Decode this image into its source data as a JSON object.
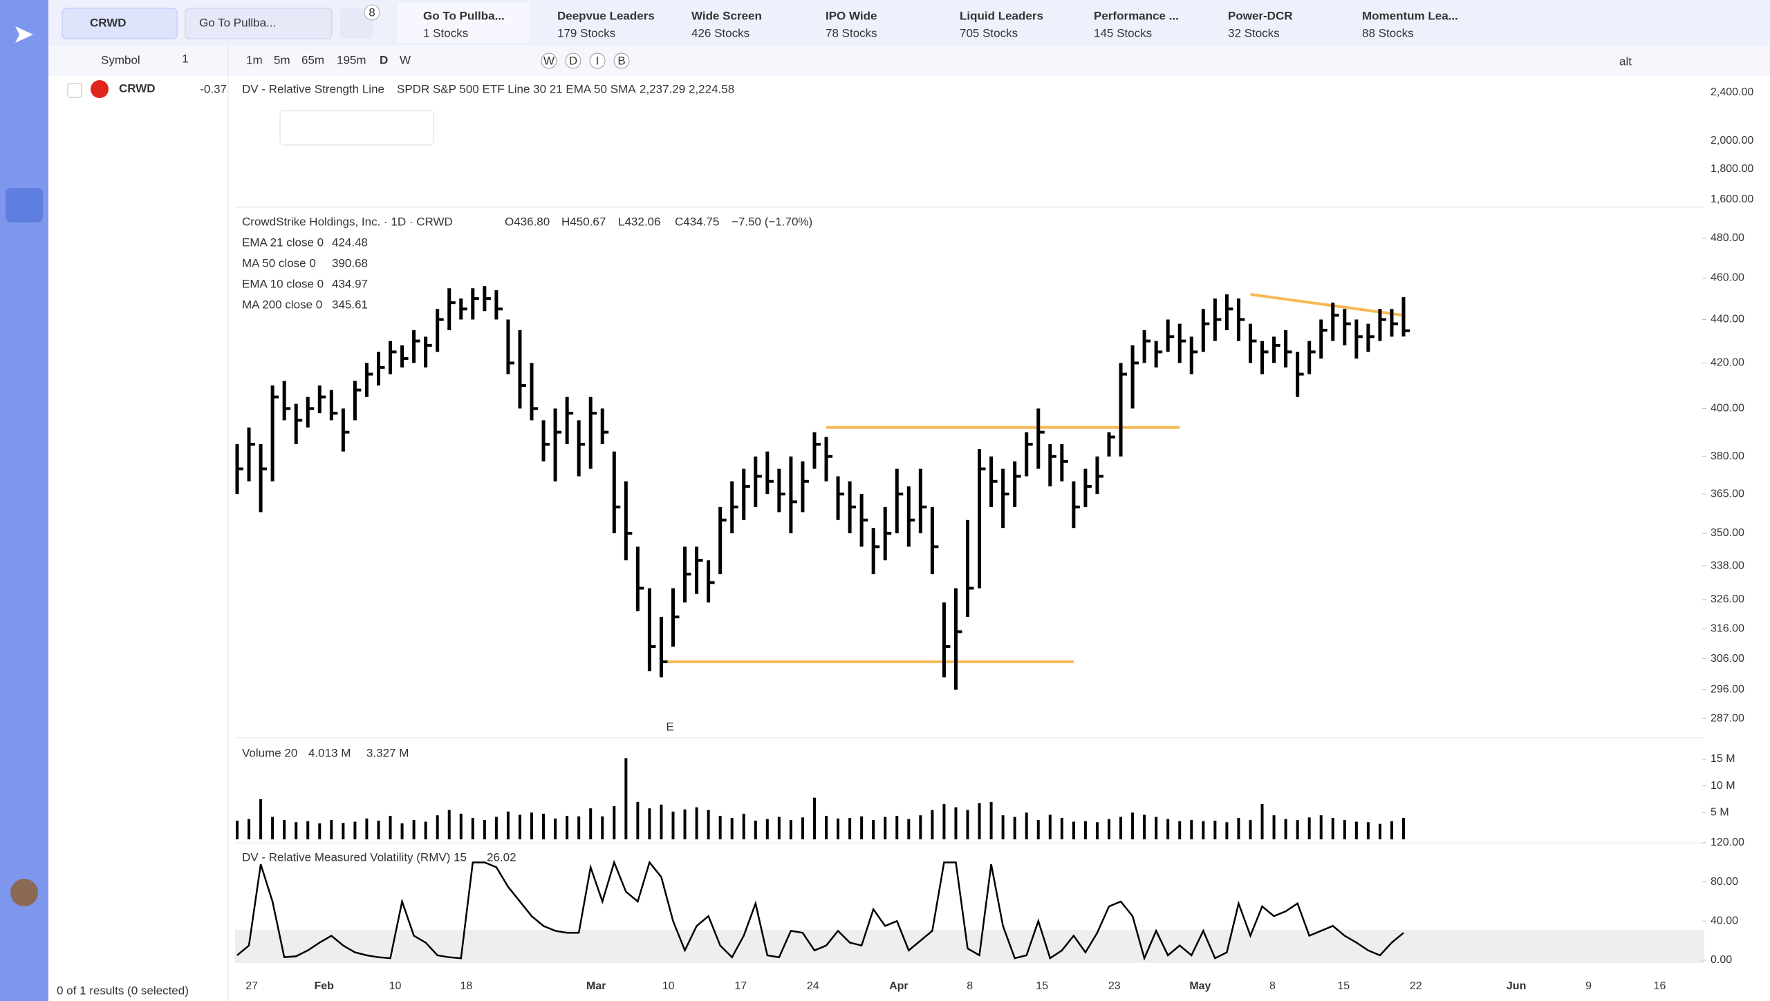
{
  "search": {
    "query": "CRWD",
    "screen": "Go To Pullba...",
    "badge": "8"
  },
  "tabs": [
    {
      "name": "Go To Pullba...",
      "count": "1 Stocks"
    },
    {
      "name": "Deepvue Leaders",
      "count": "179 Stocks"
    },
    {
      "name": "Wide Screen",
      "count": "426 Stocks"
    },
    {
      "name": "IPO Wide",
      "count": "78 Stocks"
    },
    {
      "name": "Liquid Leaders",
      "count": "705 Stocks"
    },
    {
      "name": "Performance ...",
      "count": "145 Stocks"
    },
    {
      "name": "Power-DCR",
      "count": "32 Stocks"
    },
    {
      "name": "Momentum Lea...",
      "count": "88 Stocks"
    }
  ],
  "watchlist": {
    "header": "Symbol",
    "count": "1",
    "rows": [
      {
        "symbol": "CRWD",
        "change": "-0.37"
      }
    ],
    "footer": "0 of 1 results (0 selected)"
  },
  "toolbar": {
    "intervals": [
      "1m",
      "5m",
      "65m",
      "195m",
      "D",
      "W"
    ],
    "toggles": [
      "W",
      "D",
      "I",
      "B"
    ],
    "alt": "alt"
  },
  "rs_panel": {
    "title": "DV - Relative Strength Line",
    "params": "SPDR S&P 500 ETF Line 30 21 EMA 50 SMA",
    "value1": "2,237.29",
    "value2": "2,224.58",
    "ticks": [
      "2,400.00",
      "2,000.00",
      "1,800.00",
      "1,600.00"
    ]
  },
  "chart_data": {
    "type": "ohlc",
    "title": "CrowdStrike Holdings, Inc. · 1D · CRWD",
    "ohlc_labels": [
      "O436.80",
      "H450.67",
      "L432.06",
      "C434.75",
      "−7.50 (−1.70%)"
    ],
    "indicators": [
      {
        "name": "EMA 21 close 0",
        "value": "424.48"
      },
      {
        "name": "MA 50 close 0",
        "value": "390.68"
      },
      {
        "name": "EMA 10 close 0",
        "value": "434.97"
      },
      {
        "name": "MA 200 close 0",
        "value": "345.61"
      }
    ],
    "bars": [
      [
        385,
        365,
        375
      ],
      [
        392,
        370,
        385
      ],
      [
        385,
        358,
        375
      ],
      [
        410,
        370,
        405
      ],
      [
        412,
        395,
        400
      ],
      [
        402,
        385,
        395
      ],
      [
        405,
        392,
        400
      ],
      [
        410,
        398,
        405
      ],
      [
        408,
        395,
        398
      ],
      [
        400,
        382,
        390
      ],
      [
        412,
        395,
        408
      ],
      [
        420,
        405,
        415
      ],
      [
        425,
        410,
        418
      ],
      [
        430,
        415,
        425
      ],
      [
        428,
        418,
        422
      ],
      [
        435,
        420,
        430
      ],
      [
        432,
        418,
        428
      ],
      [
        445,
        425,
        440
      ],
      [
        455,
        435,
        448
      ],
      [
        450,
        440,
        445
      ],
      [
        455,
        440,
        450
      ],
      [
        456,
        444,
        450
      ],
      [
        454,
        440,
        445
      ],
      [
        440,
        415,
        420
      ],
      [
        435,
        400,
        410
      ],
      [
        420,
        395,
        400
      ],
      [
        395,
        378,
        385
      ],
      [
        400,
        370,
        390
      ],
      [
        405,
        385,
        398
      ],
      [
        395,
        372,
        385
      ],
      [
        405,
        375,
        398
      ],
      [
        400,
        385,
        390
      ],
      [
        382,
        350,
        360
      ],
      [
        370,
        340,
        350
      ],
      [
        345,
        322,
        330
      ],
      [
        330,
        302,
        310
      ],
      [
        320,
        300,
        305
      ],
      [
        330,
        310,
        320
      ],
      [
        345,
        325,
        335
      ],
      [
        345,
        328,
        340
      ],
      [
        340,
        325,
        332
      ],
      [
        360,
        335,
        355
      ],
      [
        370,
        350,
        360
      ],
      [
        375,
        355,
        368
      ],
      [
        380,
        360,
        372
      ],
      [
        382,
        365,
        370
      ],
      [
        375,
        358,
        365
      ],
      [
        380,
        350,
        362
      ],
      [
        378,
        358,
        370
      ],
      [
        390,
        375,
        385
      ],
      [
        388,
        370,
        380
      ],
      [
        372,
        355,
        365
      ],
      [
        370,
        350,
        360
      ],
      [
        365,
        345,
        355
      ],
      [
        352,
        335,
        345
      ],
      [
        360,
        340,
        350
      ],
      [
        375,
        350,
        365
      ],
      [
        368,
        345,
        355
      ],
      [
        375,
        350,
        360
      ],
      [
        360,
        335,
        345
      ],
      [
        325,
        300,
        310
      ],
      [
        330,
        296,
        315
      ],
      [
        355,
        320,
        330
      ],
      [
        383,
        330,
        375
      ],
      [
        380,
        360,
        370
      ],
      [
        375,
        352,
        365
      ],
      [
        378,
        360,
        372
      ],
      [
        390,
        372,
        385
      ],
      [
        400,
        375,
        390
      ],
      [
        385,
        368,
        380
      ],
      [
        385,
        370,
        378
      ],
      [
        370,
        352,
        360
      ],
      [
        375,
        360,
        368
      ],
      [
        380,
        365,
        372
      ],
      [
        390,
        380,
        388
      ],
      [
        420,
        380,
        415
      ],
      [
        428,
        400,
        420
      ],
      [
        435,
        420,
        430
      ],
      [
        430,
        418,
        425
      ],
      [
        440,
        425,
        432
      ],
      [
        438,
        420,
        430
      ],
      [
        432,
        415,
        425
      ],
      [
        445,
        425,
        438
      ],
      [
        450,
        430,
        440
      ],
      [
        452,
        435,
        445
      ],
      [
        450,
        430,
        440
      ],
      [
        438,
        420,
        430
      ],
      [
        430,
        415,
        425
      ],
      [
        432,
        420,
        428
      ],
      [
        435,
        418,
        425
      ],
      [
        425,
        405,
        415
      ],
      [
        430,
        415,
        425
      ],
      [
        440,
        422,
        435
      ],
      [
        448,
        430,
        442
      ],
      [
        445,
        428,
        438
      ],
      [
        440,
        422,
        432
      ],
      [
        438,
        425,
        432
      ],
      [
        445,
        430,
        440
      ],
      [
        445,
        432,
        438
      ],
      [
        450.67,
        432.06,
        434.75
      ]
    ],
    "trendlines": [
      [
        392,
        392
      ],
      [
        305,
        305
      ],
      [
        452,
        442
      ]
    ],
    "log": true,
    "ylim": [
      282,
      490
    ],
    "yticks": [
      {
        "value": 480,
        "label": "480.00"
      },
      {
        "value": 460,
        "label": "460.00"
      },
      {
        "value": 440,
        "label": "440.00"
      },
      {
        "value": 420,
        "label": "420.00"
      },
      {
        "value": 400,
        "label": "400.00"
      },
      {
        "value": 380,
        "label": "380.00"
      },
      {
        "value": 365,
        "label": "365.00"
      },
      {
        "value": 350,
        "label": "350.00"
      },
      {
        "value": 338,
        "label": "338.00"
      },
      {
        "value": 326,
        "label": "326.00"
      },
      {
        "value": 316,
        "label": "316.00"
      },
      {
        "value": 306,
        "label": "306.00"
      },
      {
        "value": 296,
        "label": "296.00"
      },
      {
        "value": 287,
        "label": "287.00"
      }
    ],
    "x_labels": [
      "27",
      "Feb",
      "10",
      "18",
      "Mar",
      "10",
      "17",
      "24",
      "Apr",
      "8",
      "15",
      "23",
      "May",
      "8",
      "15",
      "22",
      "Jun",
      "9",
      "16"
    ],
    "earnings": "E",
    "volume": {
      "title": "Volume 20",
      "value1": "4.013 M",
      "value2": "3.327 M",
      "color": "#000000",
      "ylim": [
        0,
        19
      ],
      "yticks": [
        {
          "value": 15,
          "label": "15 M"
        },
        {
          "value": 10,
          "label": "10 M"
        },
        {
          "value": 5,
          "label": "5 M"
        }
      ],
      "values": [
        3.5,
        3.8,
        7.5,
        4.2,
        3.6,
        3.2,
        3.4,
        3.0,
        3.6,
        3.1,
        3.3,
        3.9,
        3.5,
        4.4,
        3.0,
        3.6,
        3.3,
        4.5,
        5.5,
        4.8,
        4.0,
        3.6,
        4.2,
        5.2,
        4.6,
        5.0,
        4.8,
        3.9,
        4.4,
        4.3,
        5.8,
        4.3,
        6.2,
        15.2,
        7.0,
        5.8,
        6.5,
        5.2,
        5.6,
        6.0,
        5.5,
        4.4,
        4.0,
        4.8,
        3.5,
        3.8,
        4.2,
        3.6,
        4.1,
        7.8,
        4.4,
        3.9,
        4.0,
        4.3,
        3.6,
        4.2,
        4.4,
        3.8,
        4.5,
        5.5,
        6.6,
        6.0,
        5.5,
        6.8,
        7.0,
        4.5,
        4.2,
        5.0,
        3.6,
        4.6,
        4.0,
        3.3,
        3.4,
        3.2,
        3.8,
        4.2,
        5.0,
        4.6,
        4.2,
        3.8,
        3.4,
        3.6,
        3.4,
        3.5,
        3.2,
        4.0,
        3.6,
        6.6,
        4.5,
        3.8,
        3.6,
        4.1,
        4.5,
        4.0,
        3.6,
        3.3,
        3.2,
        2.9,
        3.4,
        4.0
      ]
    },
    "rmv": {
      "title": "DV - Relative Measured Volatility (RMV) 15",
      "value": "26.02",
      "ylim": [
        -17,
        120
      ],
      "yticks": [
        {
          "value": 120,
          "label": "120.00"
        },
        {
          "value": 80,
          "label": "80.00"
        },
        {
          "value": 40,
          "label": "40.00"
        },
        {
          "value": 0,
          "label": "0.00"
        }
      ],
      "values": [
        5,
        15,
        98,
        60,
        3,
        4,
        10,
        18,
        25,
        15,
        8,
        5,
        3,
        2,
        60,
        25,
        18,
        5,
        3,
        2,
        100,
        100,
        95,
        75,
        60,
        45,
        35,
        30,
        28,
        28,
        95,
        60,
        100,
        70,
        60,
        100,
        85,
        40,
        10,
        35,
        45,
        15,
        3,
        25,
        58,
        5,
        3,
        30,
        28,
        10,
        15,
        30,
        18,
        15,
        52,
        35,
        40,
        10,
        20,
        30,
        100,
        100,
        12,
        5,
        98,
        35,
        2,
        5,
        40,
        2,
        10,
        25,
        8,
        28,
        55,
        60,
        45,
        2,
        30,
        5,
        15,
        5,
        30,
        2,
        8,
        58,
        25,
        55,
        45,
        50,
        58,
        25,
        30,
        35,
        25,
        18,
        10,
        5,
        18,
        28
      ]
    }
  }
}
